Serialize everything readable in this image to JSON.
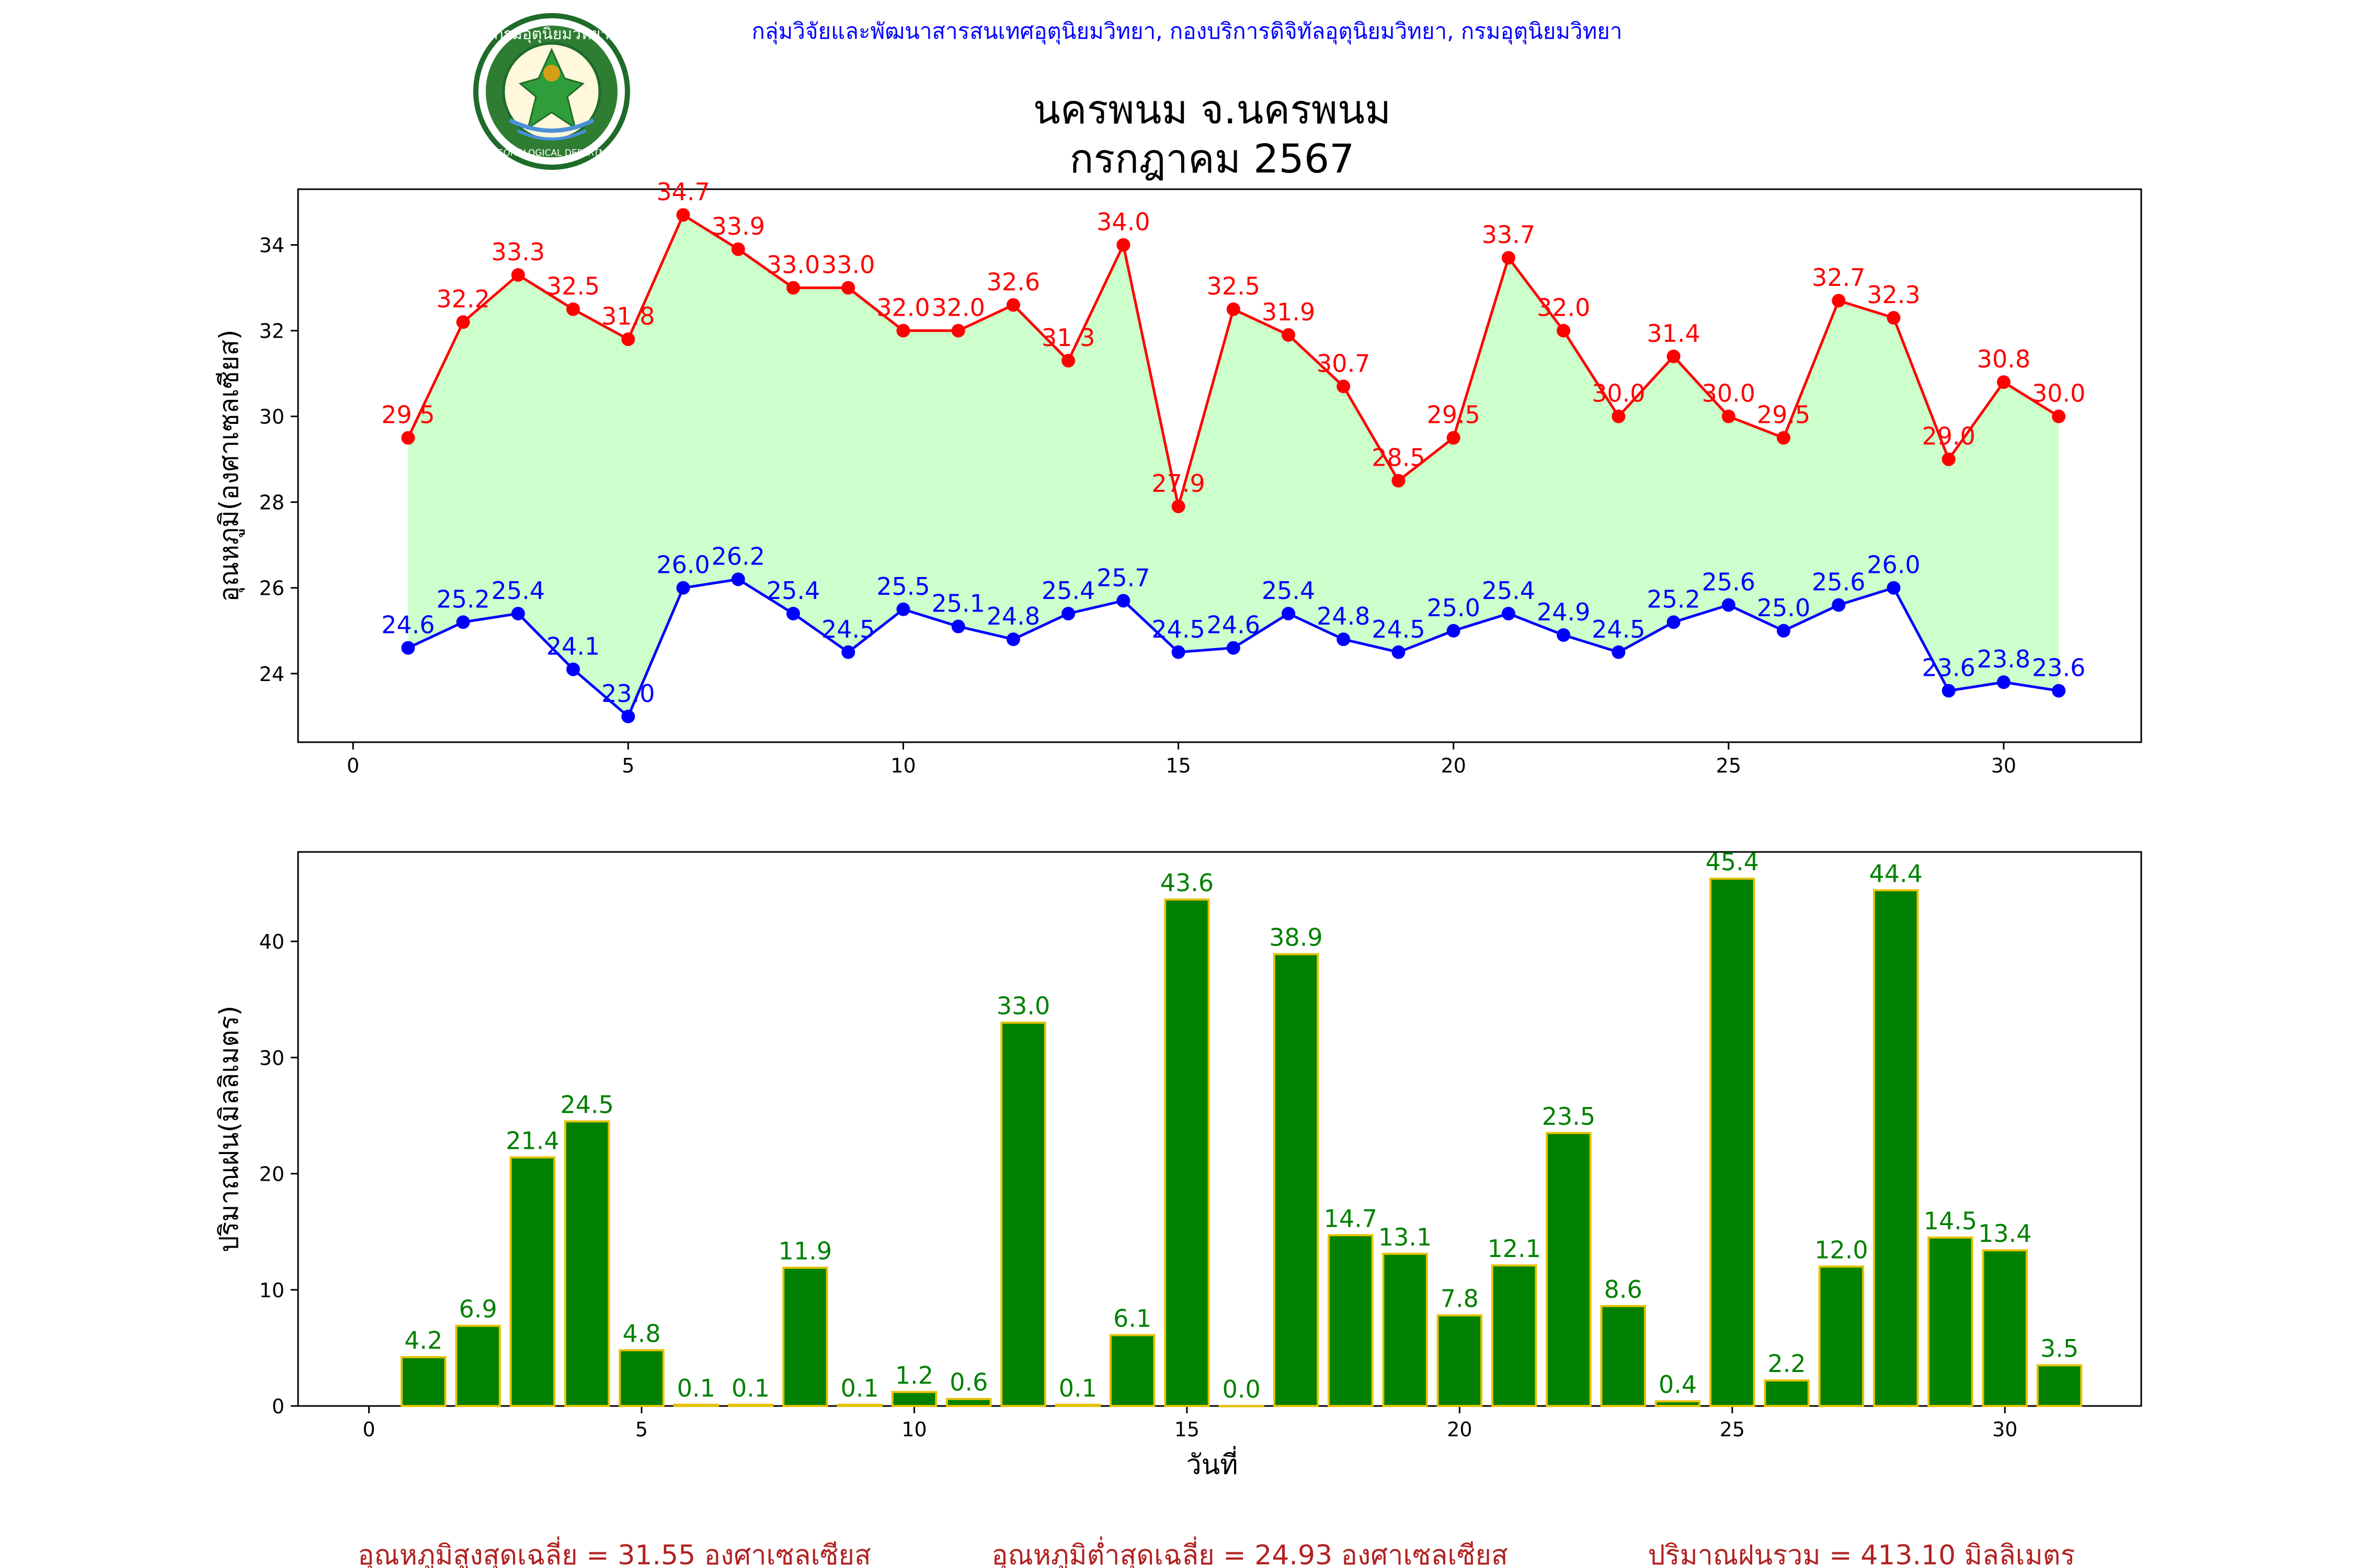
{
  "header": {
    "org_text": "กลุ่มวิจัยและพัฒนาสารสนเทศอุตุนิยมวิทยา, กองบริการดิจิทัลอุตุนิยมวิทยา, กรมอุตุนิยมวิทยา",
    "title_line1": "นครพนม จ.นครพนม",
    "title_line2": "กรกฎาคม 2567",
    "logo_top_text": "กรมอุตุนิยมวิทยา",
    "logo_bottom_text": "METEOROLOGICAL DEPARTMENT"
  },
  "colors": {
    "max_line": "#ff0000",
    "min_line": "#0000ff",
    "fill": "#ccffcc",
    "bar_fill": "#008000",
    "bar_edge": "#e5c100",
    "bar_label": "#008000",
    "footer_text": "#b22222",
    "header_text": "#0000ff"
  },
  "chart_data": [
    {
      "type": "line",
      "ylabel": "อุณหภูมิ(องศาเซลเซียส)",
      "xlabel": "",
      "xlim": [
        -1,
        32.5
      ],
      "ylim": [
        22.4,
        35.3
      ],
      "x_ticks": [
        0,
        5,
        10,
        15,
        20,
        25,
        30
      ],
      "y_ticks": [
        24,
        26,
        28,
        30,
        32,
        34
      ],
      "x": [
        1,
        2,
        3,
        4,
        5,
        6,
        7,
        8,
        9,
        10,
        11,
        12,
        13,
        14,
        15,
        16,
        17,
        18,
        19,
        20,
        21,
        22,
        23,
        24,
        25,
        26,
        27,
        28,
        29,
        30,
        31
      ],
      "series": [
        {
          "key": "max",
          "values": [
            29.5,
            32.2,
            33.3,
            32.5,
            31.8,
            34.7,
            33.9,
            33.0,
            33.0,
            32.0,
            32.0,
            32.6,
            31.3,
            34.0,
            27.9,
            32.5,
            31.9,
            30.7,
            28.5,
            29.5,
            33.7,
            32.0,
            30.0,
            31.4,
            30.0,
            29.5,
            32.7,
            32.3,
            29.0,
            30.8,
            30.0
          ],
          "labels": [
            "29.5",
            "32.2",
            "33.3",
            "32.5",
            "31.8",
            "34.7",
            "33.9",
            "33.0",
            "33.0",
            "32.0",
            "32.0",
            "32.6",
            "31.3",
            "34.0",
            "27.9",
            "32.5",
            "31.9",
            "30.7",
            "28.5",
            "29.5",
            "33.7",
            "32.0",
            "30.0",
            "31.4",
            "30.0",
            "29.5",
            "32.7",
            "32.3",
            "29.0",
            "30.8",
            "30.0"
          ]
        },
        {
          "key": "min",
          "values": [
            24.6,
            25.2,
            25.4,
            24.1,
            23.0,
            26.0,
            26.2,
            25.4,
            24.5,
            25.5,
            25.1,
            24.8,
            25.4,
            25.7,
            24.5,
            24.6,
            25.4,
            24.8,
            24.5,
            25.0,
            25.4,
            24.9,
            24.5,
            25.2,
            25.6,
            25.0,
            25.6,
            26.0,
            23.6,
            23.8,
            23.6
          ],
          "labels": [
            "24.6",
            "25.2",
            "25.4",
            "24.1",
            "23.0",
            "26.0",
            "26.2",
            "25.4",
            "24.5",
            "25.5",
            "25.1",
            "24.8",
            "25.4",
            "25.7",
            "24.5",
            "24.6",
            "25.4",
            "24.8",
            "24.5",
            "25.0",
            "25.4",
            "24.9",
            "24.5",
            "25.2",
            "25.6",
            "25.0",
            "25.6",
            "26.0",
            "23.6",
            "23.8",
            "23.6"
          ]
        }
      ],
      "fill_between": true,
      "legend": "none",
      "grid": false
    },
    {
      "type": "bar",
      "ylabel": "ปริมาณฝน(มิลลิเมตร)",
      "xlabel": "วันที่",
      "xlim": [
        -1.3,
        32.5
      ],
      "ylim": [
        0,
        47.7
      ],
      "x_ticks": [
        0,
        5,
        10,
        15,
        20,
        25,
        30
      ],
      "y_ticks": [
        0,
        10,
        20,
        30,
        40
      ],
      "x": [
        1,
        2,
        3,
        4,
        5,
        6,
        7,
        8,
        9,
        10,
        11,
        12,
        13,
        14,
        15,
        16,
        17,
        18,
        19,
        20,
        21,
        22,
        23,
        24,
        25,
        26,
        27,
        28,
        29,
        30,
        31
      ],
      "values": [
        4.2,
        6.9,
        21.4,
        24.5,
        4.8,
        0.1,
        0.1,
        11.9,
        0.1,
        1.2,
        0.6,
        33.0,
        0.1,
        6.1,
        43.6,
        0.0,
        38.9,
        14.7,
        13.1,
        7.8,
        12.1,
        23.5,
        8.6,
        0.4,
        45.4,
        2.2,
        12.0,
        44.4,
        14.5,
        13.4,
        3.5
      ],
      "labels": [
        "4.2",
        "6.9",
        "21.4",
        "24.5",
        "4.8",
        "0.1",
        "0.1",
        "11.9",
        "0.1",
        "1.2",
        "0.6",
        "33.0",
        "0.1",
        "6.1",
        "43.6",
        "0.0",
        "38.9",
        "14.7",
        "13.1",
        "7.8",
        "12.1",
        "23.5",
        "8.6",
        "0.4",
        "45.4",
        "2.2",
        "12.0",
        "44.4",
        "14.5",
        "13.4",
        "3.5"
      ],
      "legend": "none",
      "grid": false
    }
  ],
  "footer": {
    "avg_max": "อุณหภูมิสูงสุดเฉลี่ย = 31.55 องศาเซลเซียส",
    "avg_min": "อุณหภูมิต่ำสุดเฉลี่ย = 24.93 องศาเซลเซียส",
    "total_rain": "ปริมาณฝนรวม = 413.10 มิลลิเมตร"
  }
}
